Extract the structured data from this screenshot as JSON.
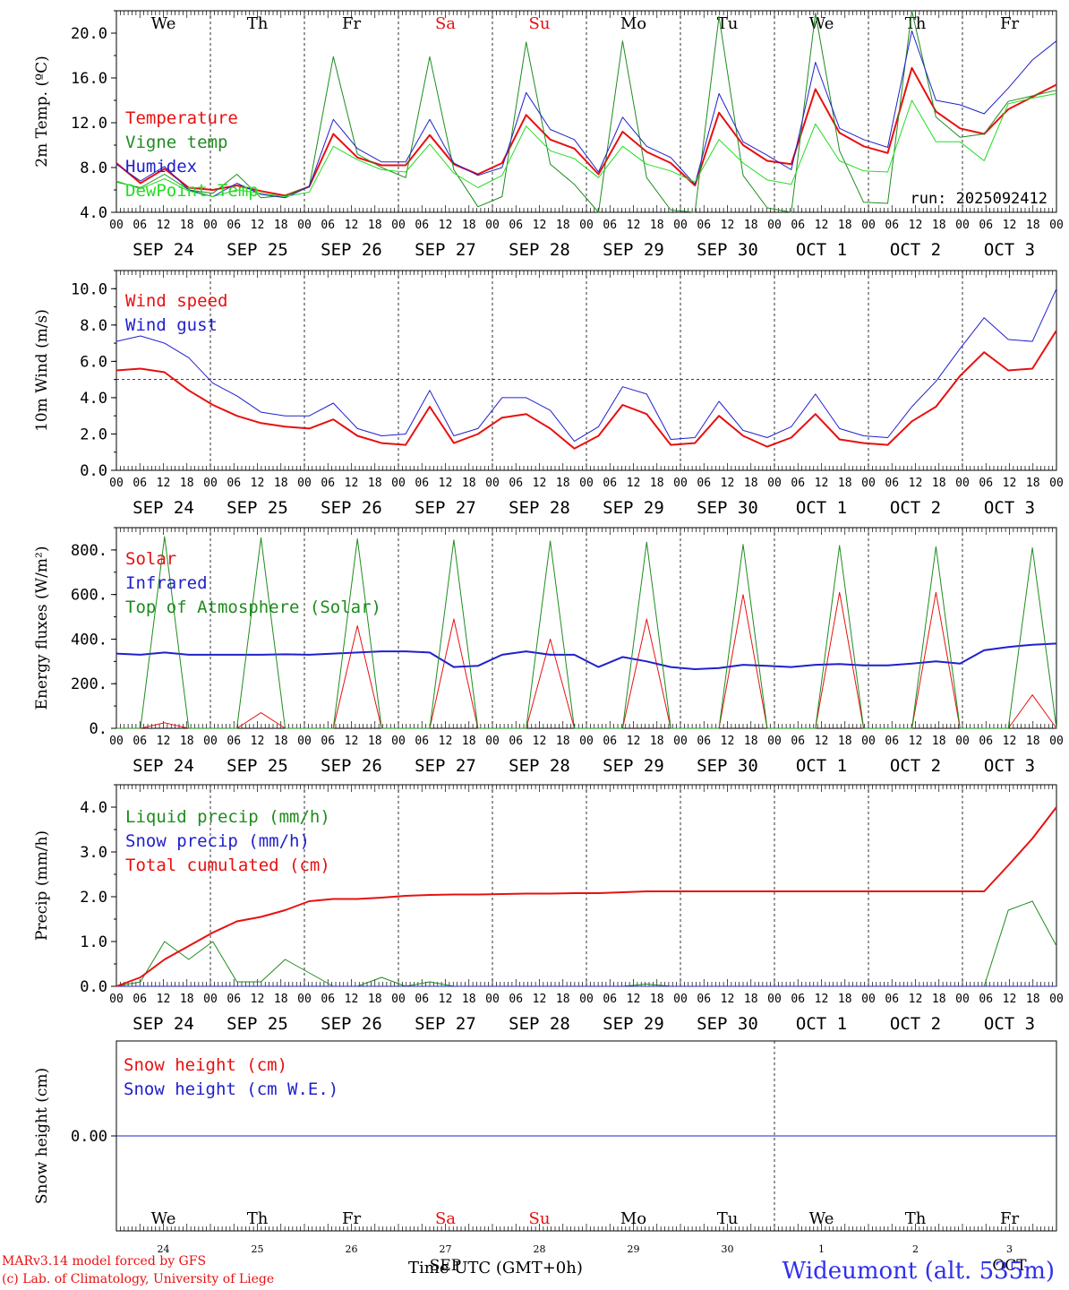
{
  "header": {
    "footer_credit_1": "MARv3.14 model forced by GFS",
    "footer_credit_2": "(c) Lab. of Climatology, University of Liege",
    "station": "Wideumont (alt. 535m)",
    "time_axis": "Time UTC (GMT+0h)",
    "bottom_month_1": "SEP",
    "bottom_month_2": "OCT",
    "run_label": "run: 2025092412"
  },
  "chart_data": [
    {
      "id": "temperature",
      "type": "line",
      "ylabel": "2m Temp. (ºC)",
      "ylim": [
        4,
        22
      ],
      "yticks": [
        "4.0",
        "8.0",
        "12.0",
        "16.0",
        "20.0"
      ],
      "x_start": "2025-09-24 00 UTC",
      "x_step_hours": 6,
      "day_labels": [
        "We",
        "Th",
        "Fr",
        "Sa",
        "Su",
        "Mo",
        "Tu",
        "We",
        "Th",
        "Fr"
      ],
      "weekend_color": "#e81010",
      "date_labels": [
        "SEP 24",
        "SEP 25",
        "SEP 26",
        "SEP 27",
        "SEP 28",
        "SEP 29",
        "SEP 30",
        "OCT  1",
        "OCT  2",
        "OCT  3"
      ],
      "hour_labels": [
        "00",
        "06",
        "12",
        "18"
      ],
      "series": [
        {
          "name": "Temperature",
          "color": "#e81010",
          "width": 2,
          "values": [
            8.4,
            6.6,
            7.9,
            6.2,
            6.0,
            6.4,
            5.9,
            5.5,
            6.3,
            11.0,
            8.9,
            8.2,
            8.2,
            10.9,
            8.3,
            7.4,
            8.4,
            12.7,
            10.5,
            9.7,
            7.4,
            11.2,
            9.4,
            8.4,
            6.4,
            12.9,
            10.0,
            8.6,
            8.3,
            15.0,
            11.1,
            9.9,
            9.3,
            16.9,
            13.0,
            11.5,
            11.0,
            13.2,
            14.3,
            15.4
          ]
        },
        {
          "name": "Vigne temp",
          "color": "#1e8c1e",
          "width": 1,
          "values": [
            6.7,
            6.2,
            7.4,
            6.0,
            5.7,
            7.4,
            5.3,
            5.5,
            6.3,
            17.9,
            9.2,
            8.0,
            7.1,
            17.9,
            7.8,
            4.5,
            5.4,
            19.2,
            8.3,
            6.5,
            3.7,
            19.3,
            7.1,
            4.2,
            3.4,
            21.5,
            7.3,
            4.4,
            3.6,
            21.8,
            9.5,
            4.9,
            4.8,
            22.0,
            12.5,
            10.7,
            11.0,
            13.9,
            14.4,
            14.9
          ]
        },
        {
          "name": "Humidex",
          "color": "#2020cc",
          "width": 1,
          "values": [
            8.3,
            6.8,
            8.1,
            6.0,
            5.4,
            6.6,
            5.6,
            5.3,
            6.3,
            12.3,
            9.7,
            8.5,
            8.5,
            12.3,
            8.4,
            7.3,
            8.0,
            14.7,
            11.4,
            10.5,
            7.6,
            12.5,
            9.9,
            8.9,
            6.5,
            14.6,
            10.3,
            9.1,
            7.8,
            17.4,
            11.5,
            10.5,
            9.8,
            20.2,
            14.0,
            13.6,
            12.8,
            15.1,
            17.6,
            19.3
          ]
        },
        {
          "name": "DewPoint Temp",
          "color": "#22dd22",
          "width": 1,
          "values": [
            6.8,
            6.1,
            7.0,
            5.9,
            5.4,
            6.0,
            5.7,
            5.4,
            5.8,
            9.9,
            8.7,
            7.8,
            7.6,
            10.1,
            7.5,
            6.2,
            7.3,
            11.7,
            9.5,
            8.8,
            7.1,
            9.9,
            8.3,
            7.7,
            6.7,
            10.5,
            8.4,
            6.9,
            6.5,
            11.9,
            8.6,
            7.7,
            7.6,
            14.0,
            10.3,
            10.3,
            8.6,
            13.7,
            14.2,
            14.6
          ]
        }
      ]
    },
    {
      "id": "wind",
      "type": "line",
      "ylabel": "10m Wind (m/s)",
      "ylim": [
        0,
        11
      ],
      "yticks": [
        "0.0",
        "2.0",
        "4.0",
        "6.0",
        "8.0",
        "10.0"
      ],
      "hline": 5,
      "date_labels": [
        "SEP 24",
        "SEP 25",
        "SEP 26",
        "SEP 27",
        "SEP 28",
        "SEP 29",
        "SEP 30",
        "OCT  1",
        "OCT  2",
        "OCT  3"
      ],
      "hour_labels": [
        "00",
        "06",
        "12",
        "18"
      ],
      "series": [
        {
          "name": "Wind speed",
          "color": "#e81010",
          "width": 2,
          "values": [
            5.5,
            5.6,
            5.4,
            4.4,
            3.6,
            3.0,
            2.6,
            2.4,
            2.3,
            2.8,
            1.9,
            1.5,
            1.4,
            3.5,
            1.5,
            2.0,
            2.9,
            3.1,
            2.3,
            1.2,
            1.9,
            3.6,
            3.1,
            1.4,
            1.5,
            3.0,
            1.9,
            1.3,
            1.8,
            3.1,
            1.7,
            1.5,
            1.4,
            2.7,
            3.5,
            5.2,
            6.5,
            5.5,
            5.6,
            7.7
          ]
        },
        {
          "name": "Wind gust",
          "color": "#2020cc",
          "width": 1,
          "values": [
            7.1,
            7.4,
            7.0,
            6.2,
            4.8,
            4.1,
            3.2,
            3.0,
            3.0,
            3.7,
            2.3,
            1.9,
            2.0,
            4.4,
            1.9,
            2.3,
            4.0,
            4.0,
            3.3,
            1.6,
            2.4,
            4.6,
            4.2,
            1.7,
            1.8,
            3.8,
            2.2,
            1.8,
            2.4,
            4.2,
            2.3,
            1.9,
            1.8,
            3.5,
            4.9,
            6.7,
            8.4,
            7.2,
            7.1,
            10.0
          ]
        }
      ]
    },
    {
      "id": "energy",
      "type": "line",
      "ylabel": "Energy fluxes (W/m²)",
      "ylim": [
        0,
        900
      ],
      "yticks": [
        "0.",
        "200.",
        "400.",
        "600.",
        "800."
      ],
      "date_labels": [
        "SEP 24",
        "SEP 25",
        "SEP 26",
        "SEP 27",
        "SEP 28",
        "SEP 29",
        "SEP 30",
        "OCT  1",
        "OCT  2",
        "OCT  3"
      ],
      "hour_labels": [
        "00",
        "06",
        "12",
        "18"
      ],
      "series": [
        {
          "name": "Solar",
          "color": "#e81010",
          "width": 1,
          "values": [
            0,
            0,
            25,
            0,
            0,
            0,
            70,
            0,
            0,
            0,
            460,
            0,
            0,
            0,
            490,
            0,
            0,
            0,
            400,
            0,
            0,
            0,
            490,
            0,
            0,
            0,
            600,
            0,
            0,
            0,
            610,
            0,
            0,
            0,
            610,
            0,
            0,
            0,
            150,
            0
          ]
        },
        {
          "name": "Infrared",
          "color": "#2020cc",
          "width": 2,
          "values": [
            335,
            330,
            340,
            330,
            330,
            330,
            330,
            332,
            330,
            335,
            340,
            345,
            345,
            340,
            275,
            280,
            330,
            345,
            330,
            330,
            275,
            320,
            300,
            275,
            265,
            270,
            285,
            280,
            275,
            285,
            288,
            282,
            282,
            290,
            300,
            290,
            350,
            365,
            375,
            380
          ]
        },
        {
          "name": "Top of Atmosphere (Solar)",
          "color": "#1e8c1e",
          "width": 1,
          "values": [
            0,
            0,
            860,
            0,
            0,
            0,
            855,
            0,
            0,
            0,
            850,
            0,
            0,
            0,
            845,
            0,
            0,
            0,
            840,
            0,
            0,
            0,
            835,
            0,
            0,
            0,
            825,
            0,
            0,
            0,
            820,
            0,
            0,
            0,
            815,
            0,
            0,
            0,
            810,
            0
          ]
        }
      ]
    },
    {
      "id": "precip",
      "type": "line",
      "ylabel": "Precip (mm/h)",
      "ylim": [
        0,
        4.5
      ],
      "yticks": [
        "0.0",
        "1.0",
        "2.0",
        "3.0",
        "4.0"
      ],
      "date_labels": [
        "SEP 24",
        "SEP 25",
        "SEP 26",
        "SEP 27",
        "SEP 28",
        "SEP 29",
        "SEP 30",
        "OCT  1",
        "OCT  2",
        "OCT  3"
      ],
      "hour_labels": [
        "00",
        "06",
        "12",
        "18"
      ],
      "series": [
        {
          "name": "Liquid precip (mm/h)",
          "color": "#1e8c1e",
          "width": 1,
          "values": [
            0.0,
            0.1,
            1.0,
            0.6,
            1.0,
            0.1,
            0.1,
            0.6,
            0.3,
            0.0,
            0.0,
            0.2,
            0.0,
            0.1,
            0.0,
            0.0,
            0.0,
            0.0,
            0.0,
            0.0,
            0.0,
            0.0,
            0.05,
            0.0,
            0.0,
            0.0,
            0.0,
            0.0,
            0.0,
            0.0,
            0.0,
            0.0,
            0.0,
            0.0,
            0.0,
            0.0,
            0.0,
            1.7,
            1.9,
            0.9
          ]
        },
        {
          "name": "Snow precip (mm/h)",
          "color": "#2020cc",
          "width": 1,
          "values": [
            0,
            0,
            0,
            0,
            0,
            0,
            0,
            0,
            0,
            0,
            0,
            0,
            0,
            0,
            0,
            0,
            0,
            0,
            0,
            0,
            0,
            0,
            0,
            0,
            0,
            0,
            0,
            0,
            0,
            0,
            0,
            0,
            0,
            0,
            0,
            0,
            0,
            0,
            0,
            0
          ]
        },
        {
          "name": "Total cumulated (cm)",
          "color": "#e81010",
          "width": 2,
          "values": [
            0.0,
            0.2,
            0.6,
            0.9,
            1.2,
            1.45,
            1.55,
            1.7,
            1.9,
            1.95,
            1.95,
            1.98,
            2.02,
            2.04,
            2.05,
            2.05,
            2.06,
            2.07,
            2.07,
            2.08,
            2.08,
            2.1,
            2.12,
            2.12,
            2.12,
            2.12,
            2.12,
            2.12,
            2.12,
            2.12,
            2.12,
            2.12,
            2.12,
            2.12,
            2.12,
            2.12,
            2.12,
            2.7,
            3.3,
            4.0
          ]
        }
      ]
    },
    {
      "id": "snow",
      "type": "line",
      "ylabel": "Snow height (cm)",
      "ylim": [
        -1,
        1
      ],
      "yticks": [
        "0.00"
      ],
      "day_labels": [
        "We",
        "Th",
        "Fr",
        "Sa",
        "Su",
        "Mo",
        "Tu",
        "We",
        "Th",
        "Fr"
      ],
      "day_numbers": [
        "24",
        "25",
        "26",
        "27",
        "28",
        "29",
        "30",
        "1",
        "2",
        "3"
      ],
      "series": [
        {
          "name": "Snow height (cm)",
          "color": "#e81010",
          "width": 1,
          "values": [
            0,
            0
          ]
        },
        {
          "name": "Snow height (cm W.E.)",
          "color": "#2020cc",
          "width": 1,
          "values": [
            0,
            0
          ]
        }
      ]
    }
  ]
}
